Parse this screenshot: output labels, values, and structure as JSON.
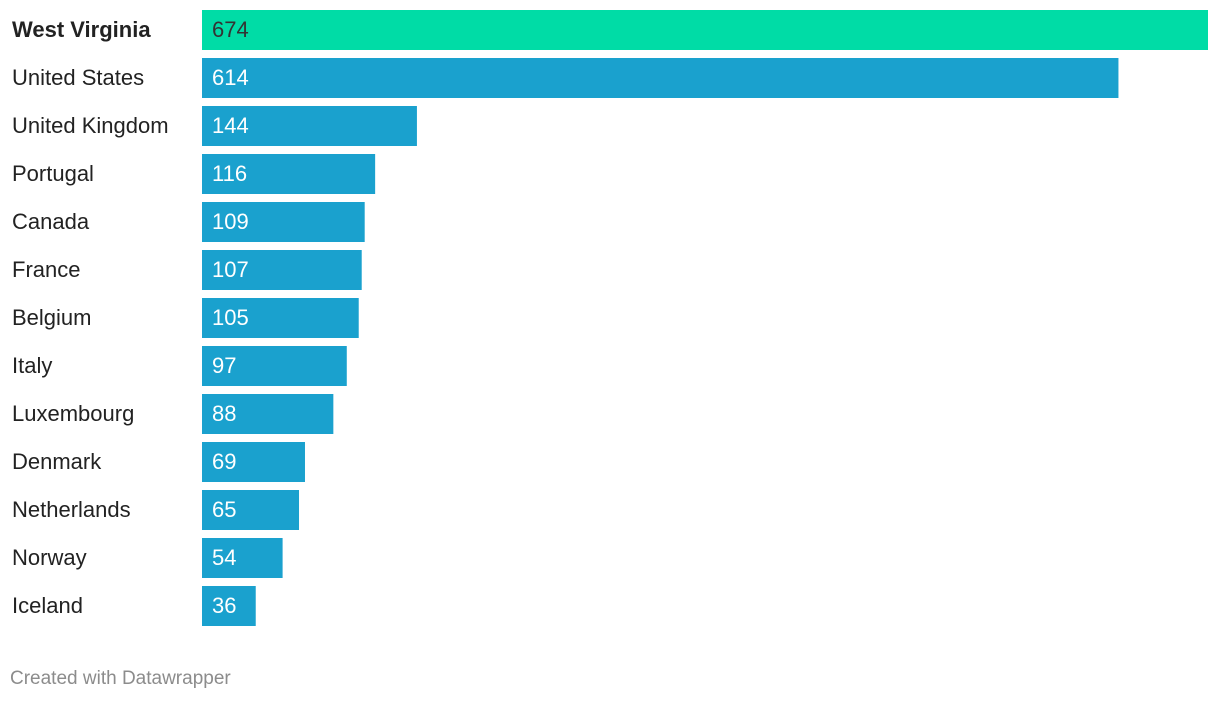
{
  "chart_data": {
    "type": "bar",
    "orientation": "horizontal",
    "categories": [
      "West Virginia",
      "United States",
      "United Kingdom",
      "Portugal",
      "Canada",
      "France",
      "Belgium",
      "Italy",
      "Luxembourg",
      "Denmark",
      "Netherlands",
      "Norway",
      "Iceland"
    ],
    "values": [
      674,
      614,
      144,
      116,
      109,
      107,
      105,
      97,
      88,
      69,
      65,
      54,
      36
    ],
    "color": "#1aa1ce",
    "highlight_color": "#00dca6",
    "highlight_index": 0,
    "footer": "Created with Datawrapper"
  }
}
